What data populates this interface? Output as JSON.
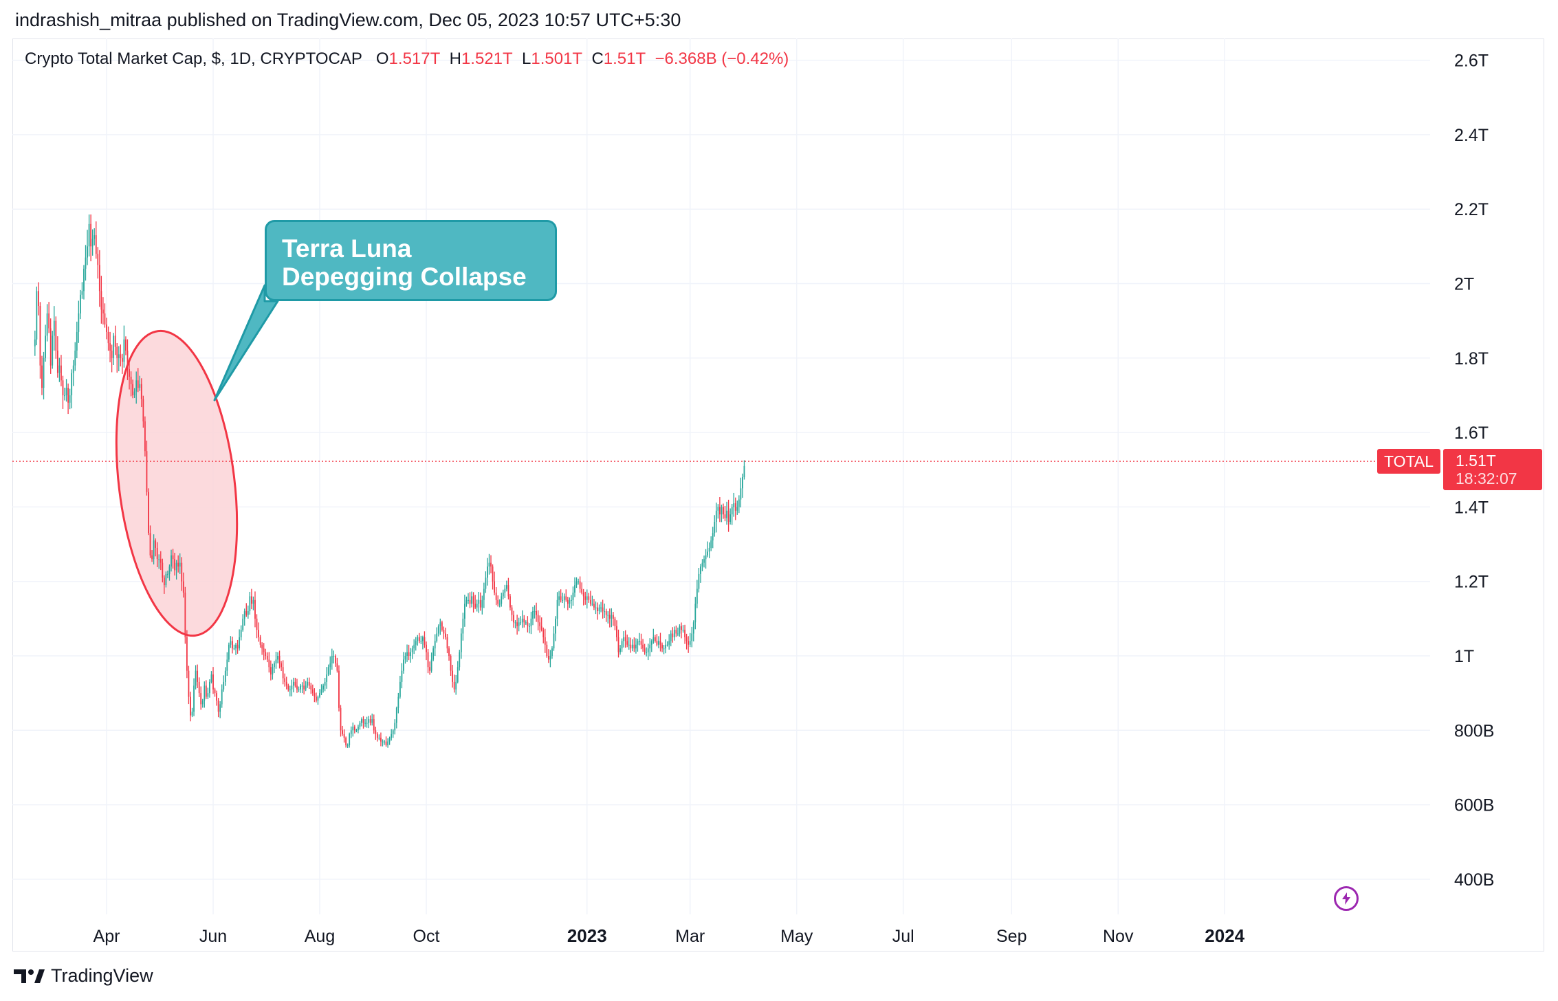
{
  "header": {
    "published_line": "indrashish_mitraa published on TradingView.com, Dec 05, 2023 10:57 UTC+5:30"
  },
  "legend": {
    "symbol": "Crypto Total Market Cap, $, 1D, CRYPTOCAP",
    "o_label": "O",
    "o_value": "1.517T",
    "h_label": "H",
    "h_value": "1.521T",
    "l_label": "L",
    "l_value": "1.501T",
    "c_label": "C",
    "c_value": "1.51T",
    "change": "−6.368B (−0.42%)"
  },
  "price_tags": {
    "symbol_tag": "TOTAL",
    "last_price": "1.51T",
    "countdown": "18:32:07"
  },
  "annotation": {
    "line1": "Terra Luna",
    "line2": "Depegging Collapse"
  },
  "footer": {
    "brand": "TradingView"
  },
  "colors": {
    "up": "#26a69a",
    "down": "#f23645",
    "callout": "#4fb8c2",
    "highlight_fill": "#fbd3d7"
  },
  "icons": [
    "tradingview-logo-icon",
    "lightning-icon"
  ],
  "chart_data": {
    "type": "candlestick",
    "title": "Crypto Total Market Cap, $, 1D, CRYPTOCAP",
    "y_unit": "USD",
    "ylim": [
      0.32,
      2.68
    ],
    "y_ticks": [
      {
        "v": 2.6,
        "label": "2.6T"
      },
      {
        "v": 2.4,
        "label": "2.4T"
      },
      {
        "v": 2.2,
        "label": "2.2T"
      },
      {
        "v": 2.0,
        "label": "2T"
      },
      {
        "v": 1.8,
        "label": "1.8T"
      },
      {
        "v": 1.6,
        "label": "1.6T"
      },
      {
        "v": 1.4,
        "label": "1.4T"
      },
      {
        "v": 1.2,
        "label": "1.2T"
      },
      {
        "v": 1.0,
        "label": "1T"
      },
      {
        "v": 0.8,
        "label": "800B"
      },
      {
        "v": 0.6,
        "label": "600B"
      },
      {
        "v": 0.4,
        "label": "400B"
      }
    ],
    "xlim": [
      "2022-02-18",
      "2024-01-31"
    ],
    "x_ticks": [
      {
        "date": "2022-04-01",
        "label": "Apr",
        "bold": false
      },
      {
        "date": "2022-06-01",
        "label": "Jun",
        "bold": false
      },
      {
        "date": "2022-08-01",
        "label": "Aug",
        "bold": false
      },
      {
        "date": "2022-10-01",
        "label": "Oct",
        "bold": false
      },
      {
        "date": "2023-01-01",
        "label": "2023",
        "bold": true
      },
      {
        "date": "2023-03-01",
        "label": "Mar",
        "bold": false
      },
      {
        "date": "2023-05-01",
        "label": "May",
        "bold": false
      },
      {
        "date": "2023-07-01",
        "label": "Jul",
        "bold": false
      },
      {
        "date": "2023-09-01",
        "label": "Sep",
        "bold": false
      },
      {
        "date": "2023-11-01",
        "label": "Nov",
        "bold": false
      },
      {
        "date": "2024-01-01",
        "label": "2024",
        "bold": true
      }
    ],
    "grid": true,
    "last_price_line": 1.51,
    "last_candle": {
      "date": "2023-12-05",
      "open": 1.517,
      "high": 1.521,
      "low": 1.501,
      "close": 1.51
    },
    "closes_start": "2022-02-19",
    "closes_note": "approximate daily closes in trillions USD read from the chart, one value per day",
    "closes": [
      1.85,
      1.98,
      1.94,
      1.78,
      1.72,
      1.8,
      1.86,
      1.92,
      1.88,
      1.78,
      1.86,
      1.9,
      1.82,
      1.76,
      1.78,
      1.74,
      1.7,
      1.7,
      1.72,
      1.68,
      1.7,
      1.76,
      1.78,
      1.82,
      1.87,
      1.92,
      1.97,
      1.98,
      2.04,
      2.07,
      2.1,
      2.16,
      2.1,
      2.12,
      2.13,
      2.08,
      2.05,
      1.98,
      1.93,
      1.92,
      1.89,
      1.87,
      1.84,
      1.82,
      1.8,
      1.86,
      1.83,
      1.8,
      1.81,
      1.8,
      1.79,
      1.85,
      1.82,
      1.77,
      1.75,
      1.73,
      1.7,
      1.71,
      1.74,
      1.72,
      1.73,
      1.69,
      1.63,
      1.55,
      1.44,
      1.33,
      1.27,
      1.26,
      1.31,
      1.29,
      1.26,
      1.26,
      1.25,
      1.21,
      1.19,
      1.22,
      1.22,
      1.24,
      1.27,
      1.26,
      1.23,
      1.25,
      1.24,
      1.25,
      1.2,
      1.17,
      1.05,
      0.96,
      0.89,
      0.84,
      0.85,
      0.92,
      0.96,
      0.93,
      0.9,
      0.87,
      0.88,
      0.92,
      0.89,
      0.9,
      0.93,
      0.95,
      0.91,
      0.9,
      0.88,
      0.85,
      0.87,
      0.91,
      0.93,
      0.96,
      0.99,
      1.03,
      1.04,
      1.02,
      1.02,
      1.03,
      1.02,
      1.05,
      1.07,
      1.1,
      1.12,
      1.11,
      1.12,
      1.16,
      1.14,
      1.15,
      1.1,
      1.07,
      1.05,
      1.03,
      1.02,
      1.01,
      1.0,
      0.99,
      0.97,
      0.95,
      0.97,
      0.98,
      0.99,
      1.0,
      0.98,
      0.97,
      0.94,
      0.93,
      0.92,
      0.91,
      0.91,
      0.92,
      0.93,
      0.92,
      0.91,
      0.91,
      0.92,
      0.92,
      0.91,
      0.92,
      0.93,
      0.92,
      0.91,
      0.9,
      0.89,
      0.88,
      0.89,
      0.9,
      0.91,
      0.92,
      0.93,
      0.95,
      0.97,
      0.98,
      1.0,
      1.0,
      0.98,
      0.96,
      0.86,
      0.8,
      0.79,
      0.78,
      0.76,
      0.76,
      0.79,
      0.8,
      0.81,
      0.8,
      0.8,
      0.81,
      0.82,
      0.83,
      0.82,
      0.82,
      0.82,
      0.83,
      0.82,
      0.83,
      0.8,
      0.79,
      0.78,
      0.78,
      0.77,
      0.77,
      0.77,
      0.76,
      0.77,
      0.78,
      0.79,
      0.8,
      0.82,
      0.86,
      0.89,
      0.93,
      0.96,
      0.99,
      1.0,
      1.01,
      1.0,
      1.01,
      1.02,
      1.03,
      1.04,
      1.05,
      1.04,
      1.04,
      1.05,
      1.03,
      1.01,
      0.97,
      0.96,
      0.99,
      1.02,
      1.04,
      1.06,
      1.08,
      1.09,
      1.07,
      1.06,
      1.05,
      1.02,
      1.0,
      0.96,
      0.93,
      0.91,
      0.93,
      0.97,
      1.01,
      1.06,
      1.1,
      1.14,
      1.15,
      1.15,
      1.14,
      1.16,
      1.14,
      1.13,
      1.14,
      1.15,
      1.13,
      1.15,
      1.18,
      1.21,
      1.24,
      1.25,
      1.24,
      1.2,
      1.17,
      1.15,
      1.14,
      1.14,
      1.16,
      1.17,
      1.18,
      1.19,
      1.16,
      1.13,
      1.11,
      1.09,
      1.09,
      1.08,
      1.09,
      1.09,
      1.1,
      1.09,
      1.09,
      1.08,
      1.08,
      1.1,
      1.12,
      1.12,
      1.11,
      1.09,
      1.08,
      1.07,
      1.05,
      1.03,
      1.0,
      0.99,
      1.0,
      1.02,
      1.06,
      1.1,
      1.15,
      1.16,
      1.15,
      1.15,
      1.16,
      1.15,
      1.14,
      1.15,
      1.15,
      1.17,
      1.19,
      1.2,
      1.2,
      1.18,
      1.17,
      1.16,
      1.15,
      1.16,
      1.15,
      1.14,
      1.14,
      1.13,
      1.13,
      1.12,
      1.13,
      1.13,
      1.12,
      1.12,
      1.11,
      1.11,
      1.1,
      1.11,
      1.1,
      1.08,
      1.05,
      1.01,
      1.02,
      1.04,
      1.05,
      1.04,
      1.03,
      1.03,
      1.02,
      1.03,
      1.02,
      1.03,
      1.04,
      1.04,
      1.03,
      1.02,
      1.01,
      1.01,
      1.02,
      1.03,
      1.04,
      1.05,
      1.04,
      1.03,
      1.04,
      1.03,
      1.02,
      1.02,
      1.03,
      1.03,
      1.04,
      1.06,
      1.05,
      1.07,
      1.06,
      1.06,
      1.08,
      1.07,
      1.07,
      1.05,
      1.04,
      1.03,
      1.04,
      1.06,
      1.09,
      1.14,
      1.18,
      1.22,
      1.24,
      1.25,
      1.26,
      1.27,
      1.28,
      1.29,
      1.31,
      1.33,
      1.36,
      1.39,
      1.4,
      1.38,
      1.4,
      1.38,
      1.37,
      1.39,
      1.36,
      1.38,
      1.4,
      1.41,
      1.39,
      1.4,
      1.42,
      1.45,
      1.48,
      1.51
    ]
  }
}
